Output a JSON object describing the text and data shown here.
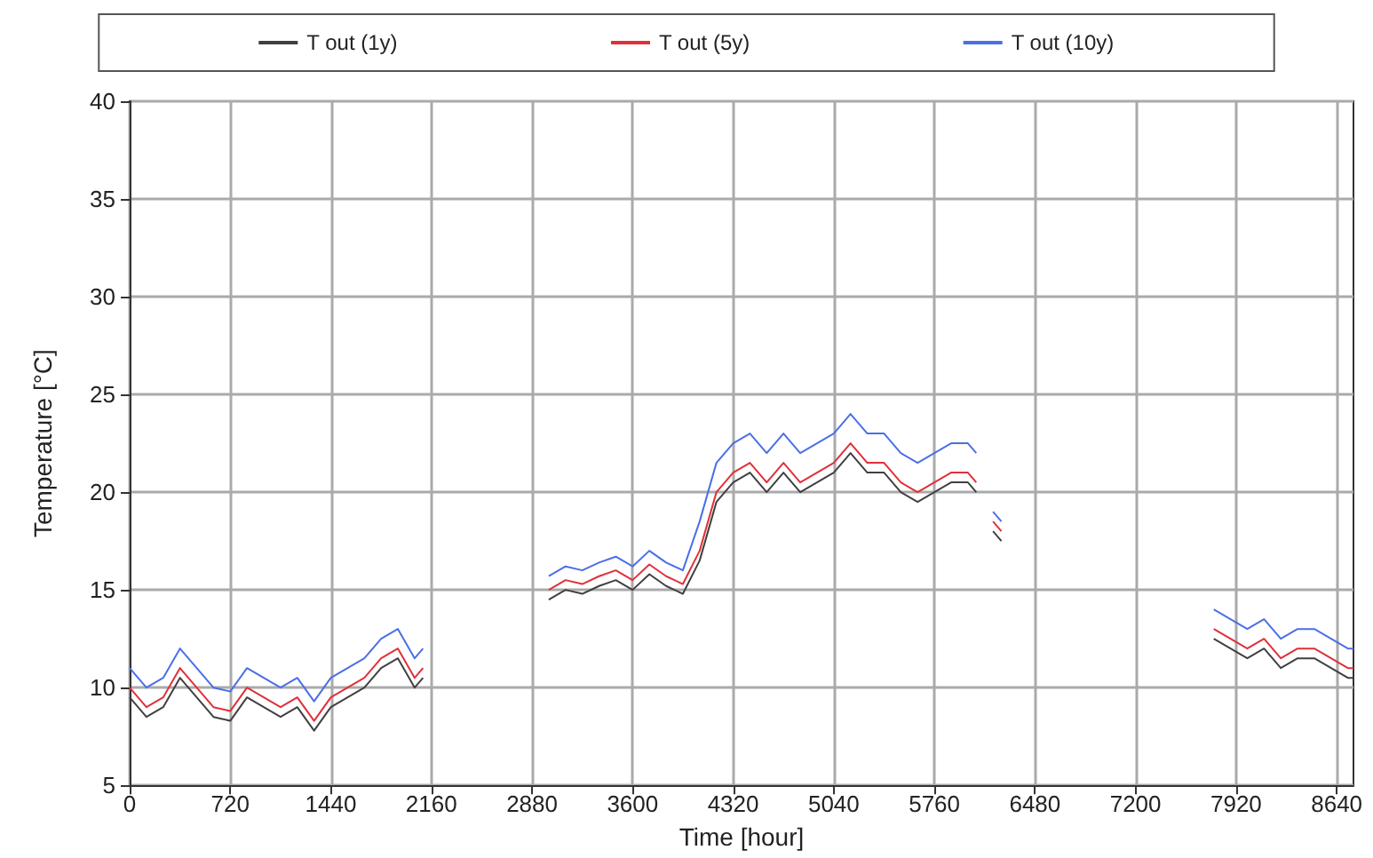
{
  "chart_data": {
    "type": "line",
    "xlabel": "Time [hour]",
    "ylabel": "Temperature [°C]",
    "x": [
      0,
      120,
      240,
      360,
      480,
      600,
      720,
      840,
      960,
      1080,
      1200,
      1320,
      1440,
      1560,
      1680,
      1800,
      1920,
      2040,
      2100,
      2500,
      3000,
      3120,
      3240,
      3360,
      3480,
      3600,
      3720,
      3840,
      3960,
      4080,
      4200,
      4320,
      4440,
      4560,
      4680,
      4800,
      4920,
      5040,
      5160,
      5280,
      5400,
      5520,
      5640,
      5760,
      5880,
      6000,
      6060,
      6120,
      6180,
      6240,
      7000,
      7760,
      7880,
      8000,
      8120,
      8240,
      8360,
      8480,
      8600,
      8720,
      8760
    ],
    "series": [
      {
        "name": "T out (1y)",
        "color": "#404040",
        "values": [
          9.5,
          8.5,
          9,
          10.5,
          9.5,
          8.5,
          8.3,
          9.5,
          9,
          8.5,
          9,
          7.8,
          9,
          9.5,
          10,
          11,
          11.5,
          10,
          10.5,
          null,
          14.5,
          15,
          14.8,
          15.2,
          15.5,
          15,
          15.8,
          15.2,
          14.8,
          16.5,
          19.5,
          20.5,
          21,
          20,
          21,
          20,
          20.5,
          21,
          22,
          21,
          21,
          20,
          19.5,
          20,
          20.5,
          20.5,
          20,
          null,
          18,
          17.5,
          null,
          12.5,
          12,
          11.5,
          12,
          11,
          11.5,
          11.5,
          11,
          10.5,
          10.5
        ]
      },
      {
        "name": "T out (5y)",
        "color": "#e0303a",
        "values": [
          10,
          9,
          9.5,
          11,
          10,
          9,
          8.8,
          10,
          9.5,
          9,
          9.5,
          8.3,
          9.5,
          10,
          10.5,
          11.5,
          12,
          10.5,
          11,
          null,
          15,
          15.5,
          15.3,
          15.7,
          16,
          15.5,
          16.3,
          15.7,
          15.3,
          17,
          20,
          21,
          21.5,
          20.5,
          21.5,
          20.5,
          21,
          21.5,
          22.5,
          21.5,
          21.5,
          20.5,
          20,
          20.5,
          21,
          21,
          20.5,
          null,
          18.5,
          18,
          null,
          13,
          12.5,
          12,
          12.5,
          11.5,
          12,
          12,
          11.5,
          11,
          11
        ]
      },
      {
        "name": "T out (10y)",
        "color": "#4a6fe8",
        "values": [
          11,
          10,
          10.5,
          12,
          11,
          10,
          9.8,
          11,
          10.5,
          10,
          10.5,
          9.3,
          10.5,
          11,
          11.5,
          12.5,
          13,
          11.5,
          12,
          null,
          15.7,
          16.2,
          16,
          16.4,
          16.7,
          16.2,
          17,
          16.4,
          16,
          18.5,
          21.5,
          22.5,
          23,
          22,
          23,
          22,
          22.5,
          23,
          24,
          23,
          23,
          22,
          21.5,
          22,
          22.5,
          22.5,
          22,
          null,
          19,
          18.5,
          null,
          14,
          13.5,
          13,
          13.5,
          12.5,
          13,
          13,
          12.5,
          12,
          12
        ]
      }
    ],
    "xlim": [
      0,
      8760
    ],
    "xticks": [
      0,
      720,
      1440,
      2160,
      2880,
      3600,
      4320,
      5040,
      5760,
      6480,
      7200,
      7920,
      8640
    ],
    "ylim": [
      5,
      40
    ],
    "yticks": [
      5,
      10,
      15,
      20,
      25,
      30,
      35,
      40
    ],
    "grid": true,
    "legend": "top",
    "marker": "none",
    "line_style": "solid"
  }
}
